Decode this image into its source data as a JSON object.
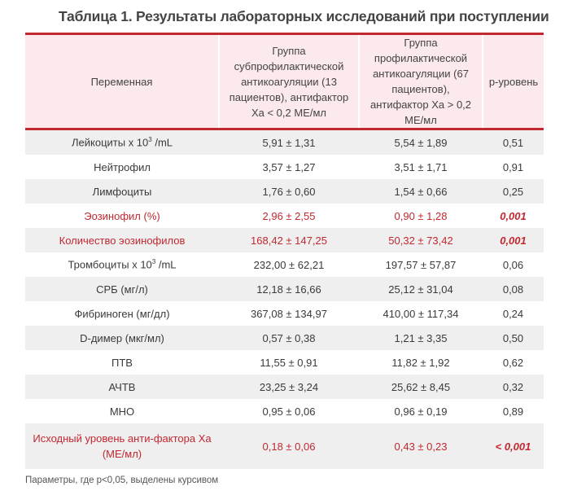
{
  "title": "Таблица 1. Результаты лабораторных исследований при поступлении",
  "headers": [
    "Переменная",
    "Группа субпрофилактической антикоагуляции (13 пациентов), антифактор Xa < 0,2 МЕ/мл",
    "Группа профилактической антикоагуляции (67 пациентов), антифактор Xa > 0,2 МЕ/мл",
    "р-уровень"
  ],
  "rows": [
    {
      "pre": "Лейкоциты x 10",
      "sup": "3",
      "post": " /mL",
      "g1": "5,91 ± 1,31",
      "g2": "5,54 ± 1,89",
      "p": "0,51"
    },
    {
      "pre": "Нейтрофил",
      "g1": "3,57 ± 1,27",
      "g2": "3,51 ± 1,71",
      "p": "0,91"
    },
    {
      "pre": "Лимфоциты",
      "g1": "1,76 ± 0,60",
      "g2": "1,54 ± 0,66",
      "p": "0,25"
    },
    {
      "pre": "Эозинофил (%)",
      "g1": "2,96 ± 2,55",
      "g2": "0,90 ± 1,28",
      "p": "0,001",
      "sig": true
    },
    {
      "pre": "Количество эозинофилов",
      "g1": "168,42 ± 147,25",
      "g2": "50,32 ± 73,42",
      "p": "0,001",
      "sig": true
    },
    {
      "pre": "Тромбоциты x 10",
      "sup": "3",
      "post": " /mL",
      "g1": "232,00 ± 62,21",
      "g2": "197,57 ± 57,87",
      "p": "0,06"
    },
    {
      "pre": "СРБ (мг/л)",
      "g1": "12,18 ± 16,66",
      "g2": "25,12 ± 31,04",
      "p": "0,08"
    },
    {
      "pre": "Фибриноген (мг/дл)",
      "g1": "367,08 ± 134,97",
      "g2": "410,00 ± 117,34",
      "p": "0,24"
    },
    {
      "pre": "D-димер (мкг/мл)",
      "g1": "0,57 ± 0,38",
      "g2": "1,21 ± 3,35",
      "p": "0,50"
    },
    {
      "pre": "ПТВ",
      "g1": "11,55 ± 0,91",
      "g2": "11,82 ± 1,92",
      "p": "0,62"
    },
    {
      "pre": "АЧТВ",
      "g1": "23,25 ± 3,24",
      "g2": "25,62 ± 8,45",
      "p": "0,32"
    },
    {
      "pre": "МНО",
      "g1": "0,95 ± 0,06",
      "g2": "0,96 ± 0,19",
      "p": "0,89"
    },
    {
      "pre": "Исходный уровень анти-фактора Xa (МЕ/мл)",
      "g1": "0,18 ± 0,06",
      "g2": "0,43 ± 0,23",
      "p": "< 0,001",
      "sig": true
    }
  ],
  "note": "Параметры, где p<0,05, выделены курсивом",
  "colors": {
    "accent": "#c22830",
    "header_bg": "#fbe9eb",
    "stripe": "#efefef"
  }
}
